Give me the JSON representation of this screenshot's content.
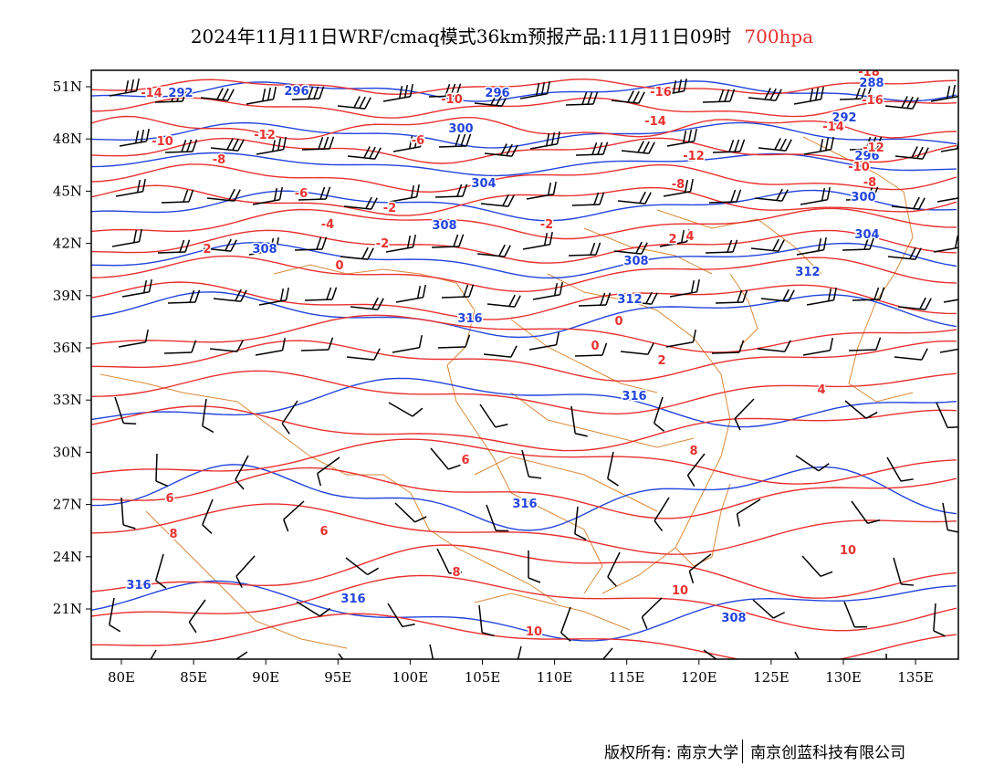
{
  "header": {
    "title": "2024年11月11日WRF/cmaq模式36km预报产品:11月11日09时",
    "level": "700hpa"
  },
  "map": {
    "lon_labels": [
      "80E",
      "85E",
      "90E",
      "95E",
      "100E",
      "105E",
      "110E",
      "115E",
      "120E",
      "125E",
      "130E",
      "135E"
    ],
    "lat_labels": [
      "21N",
      "24N",
      "27N",
      "30N",
      "33N",
      "36N",
      "39N",
      "42N",
      "45N",
      "48N",
      "51N"
    ],
    "height_contour_labels": [
      "292",
      "296",
      "296",
      "300",
      "304",
      "308",
      "308",
      "308",
      "312",
      "312",
      "316",
      "316",
      "316",
      "316",
      "316",
      "288",
      "292",
      "296",
      "300",
      "304",
      "308"
    ],
    "temperature_contour_labels": [
      "-14",
      "-12",
      "-10",
      "-8",
      "-6",
      "-4",
      "-2",
      "-2",
      "-2",
      "0",
      "0",
      "0",
      "2",
      "2",
      "2",
      "4",
      "4",
      "6",
      "6",
      "6",
      "8",
      "8",
      "8",
      "10",
      "10",
      "10",
      "-12",
      "-10",
      "-8",
      "-6",
      "-16",
      "-14",
      "-12",
      "-10",
      "-8",
      "-18",
      "-16",
      "-14"
    ],
    "colors": {
      "height": "#2244dd",
      "temperature": "#e8312f",
      "border": "#d98a3a",
      "wind": "#000000"
    }
  },
  "footer": {
    "copyright": "版权所有: 南京大学",
    "company": "南京创蓝科技有限公司"
  }
}
